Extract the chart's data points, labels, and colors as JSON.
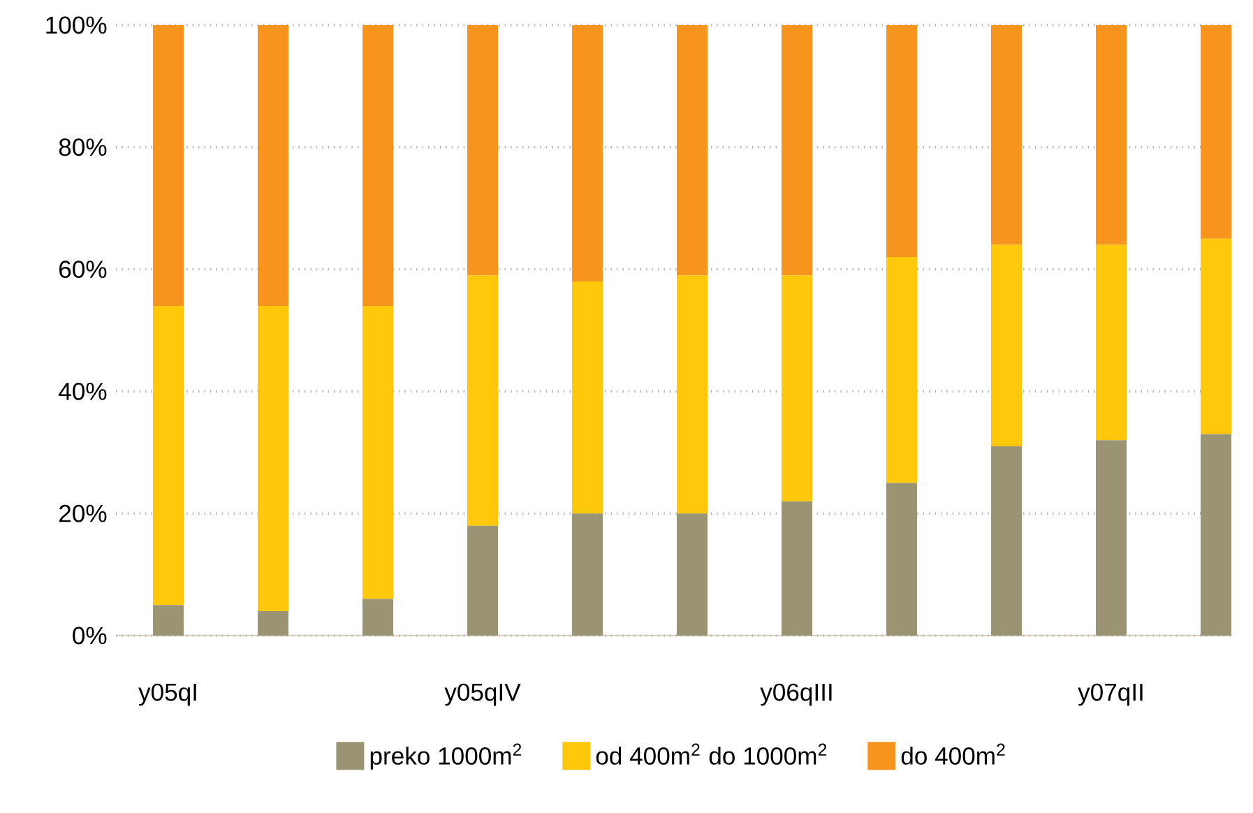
{
  "chart_data": {
    "type": "bar",
    "stacked": true,
    "categories": [
      "y05qI",
      null,
      null,
      "y05qIV",
      null,
      null,
      "y06qIII",
      null,
      null,
      "y07qII",
      null
    ],
    "series": [
      {
        "name": "preko 1000m$^{2}$",
        "color": "#9b9473",
        "values": [
          5,
          4,
          6,
          18,
          20,
          20,
          22,
          25,
          31,
          32,
          33
        ]
      },
      {
        "name": "od 400m$^{2}$ do 1000m$^{2}$",
        "color": "#ffc80a",
        "values": [
          49,
          50,
          48,
          41,
          38,
          39,
          37,
          37,
          33,
          32,
          32
        ]
      },
      {
        "name": "do 400m$^{2}$",
        "color": "#f7941d",
        "values": [
          46,
          46,
          46,
          41,
          42,
          41,
          41,
          38,
          36,
          36,
          35
        ]
      }
    ],
    "ylim": [
      0,
      100
    ],
    "yticks": [
      {
        "value": 0,
        "label": "0%"
      },
      {
        "value": 20,
        "label": "20%"
      },
      {
        "value": 40,
        "label": "40%"
      },
      {
        "value": 60,
        "label": "60%"
      },
      {
        "value": 80,
        "label": "80%"
      },
      {
        "value": 100,
        "label": "100%"
      }
    ],
    "grid": "y",
    "legend": "bottom"
  }
}
